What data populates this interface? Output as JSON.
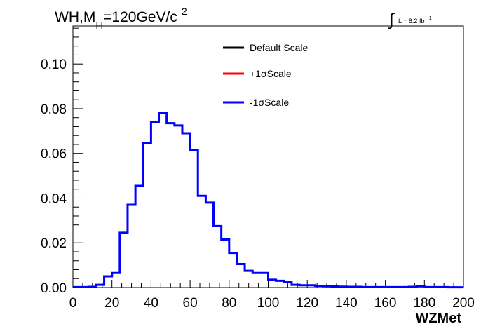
{
  "chart_data": {
    "type": "line",
    "title": {
      "main": "WH,M",
      "subscript": "H",
      "rest": "=120GeV/c",
      "superscript": "2"
    },
    "luminosity": {
      "integral": "∫",
      "text": "L = 8.2 fb",
      "superscript": "-1"
    },
    "xlabel": "WZMet",
    "ylabel": "",
    "xlim": [
      0,
      200
    ],
    "ylim": [
      0,
      0.117
    ],
    "x_ticks": [
      "0",
      "20",
      "40",
      "60",
      "80",
      "100",
      "120",
      "140",
      "160",
      "180",
      "200"
    ],
    "y_ticks": [
      "0.00",
      "0.02",
      "0.04",
      "0.06",
      "0.08",
      "0.10"
    ],
    "legend": [
      {
        "label": "Default Scale",
        "color": "#000000"
      },
      {
        "label": "+1σScale",
        "color": "#ff0000"
      },
      {
        "label": "-1σScale",
        "color": "#0000ff"
      }
    ],
    "bin_width": 4,
    "bin_low_edges": [
      0,
      4,
      8,
      12,
      16,
      20,
      24,
      28,
      32,
      36,
      40,
      44,
      48,
      52,
      56,
      60,
      64,
      68,
      72,
      76,
      80,
      84,
      88,
      92,
      96,
      100,
      104,
      108,
      112,
      116,
      120,
      124,
      128,
      132,
      136,
      140,
      144,
      148,
      152,
      156,
      160,
      164,
      168,
      172,
      176,
      180,
      184,
      188,
      192,
      196
    ],
    "values": [
      0.0002,
      0.0002,
      0.0003,
      0.0012,
      0.005,
      0.0065,
      0.0245,
      0.037,
      0.0455,
      0.0645,
      0.074,
      0.078,
      0.0735,
      0.0725,
      0.069,
      0.0615,
      0.041,
      0.038,
      0.0275,
      0.0215,
      0.0155,
      0.0105,
      0.0075,
      0.0065,
      0.0065,
      0.0035,
      0.003,
      0.0025,
      0.0012,
      0.001,
      0.001,
      0.0008,
      0.0007,
      0.0005,
      0.0004,
      0.0003,
      0.0003,
      0.0002,
      0.0002,
      0.0002,
      0.0002,
      0.0002,
      0.0002,
      0.0003,
      0.0007,
      0.0002,
      0.0002,
      0.0002,
      0.0001,
      0.0001
    ],
    "series_color": "#0000ff"
  }
}
